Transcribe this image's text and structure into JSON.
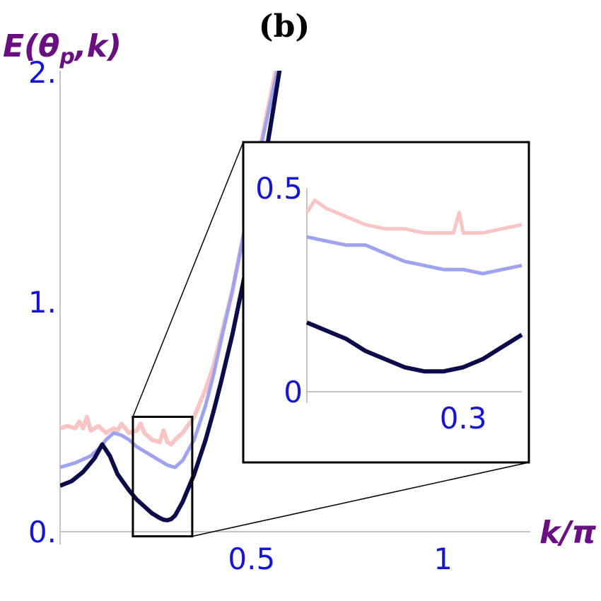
{
  "chart_data": [
    {
      "type": "line",
      "panel_label": "(b)",
      "ylabel": "E(θp,k)",
      "ylabel_parts": {
        "main": "E(",
        "theta": "θ",
        "sub": "p",
        "rest": ",k)"
      },
      "xlabel": "k/π",
      "xlim": [
        0,
        1.2
      ],
      "ylim": [
        0,
        2.0
      ],
      "x_ticks": [
        {
          "v": 0.5,
          "label": "0.5"
        },
        {
          "v": 1.0,
          "label": "1"
        }
      ],
      "y_ticks": [
        {
          "v": 0,
          "label": "0."
        },
        {
          "v": 1.0,
          "label": "1."
        },
        {
          "v": 2.0,
          "label": "2."
        }
      ],
      "series": [
        {
          "color": "#f8c4c4",
          "width": 6,
          "x": [
            0,
            0.02,
            0.04,
            0.05,
            0.06,
            0.07,
            0.08,
            0.1,
            0.12,
            0.14,
            0.15,
            0.16,
            0.18,
            0.2,
            0.21,
            0.22,
            0.24,
            0.26,
            0.27,
            0.28,
            0.29,
            0.3,
            0.32,
            0.35,
            0.38,
            0.4,
            0.42,
            0.45,
            0.48,
            0.5,
            0.52,
            0.54,
            0.56,
            0.58,
            0.6
          ],
          "y": [
            0.45,
            0.46,
            0.45,
            0.48,
            0.45,
            0.5,
            0.44,
            0.46,
            0.43,
            0.45,
            0.44,
            0.47,
            0.43,
            0.44,
            0.47,
            0.43,
            0.4,
            0.39,
            0.44,
            0.39,
            0.38,
            0.4,
            0.43,
            0.5,
            0.62,
            0.72,
            0.85,
            1.05,
            1.3,
            1.47,
            1.65,
            1.82,
            1.98,
            2.15,
            2.3
          ]
        },
        {
          "color": "#9fa2ee",
          "width": 5,
          "x": [
            0,
            0.04,
            0.08,
            0.1,
            0.12,
            0.14,
            0.16,
            0.18,
            0.2,
            0.22,
            0.24,
            0.26,
            0.28,
            0.3,
            0.32,
            0.35,
            0.38,
            0.4,
            0.42,
            0.45,
            0.48,
            0.5,
            0.53,
            0.56,
            0.58,
            0.6
          ],
          "y": [
            0.28,
            0.3,
            0.33,
            0.36,
            0.4,
            0.43,
            0.42,
            0.4,
            0.37,
            0.35,
            0.33,
            0.31,
            0.29,
            0.28,
            0.31,
            0.4,
            0.55,
            0.68,
            0.83,
            1.05,
            1.3,
            1.48,
            1.72,
            1.95,
            2.1,
            2.25
          ]
        },
        {
          "color": "#0b0b4a",
          "width": 6,
          "x": [
            0,
            0.03,
            0.06,
            0.09,
            0.11,
            0.13,
            0.15,
            0.18,
            0.2,
            0.22,
            0.24,
            0.26,
            0.27,
            0.28,
            0.29,
            0.3,
            0.32,
            0.35,
            0.38,
            0.4,
            0.42,
            0.45,
            0.48,
            0.5,
            0.52,
            0.55,
            0.58,
            0.6
          ],
          "y": [
            0.2,
            0.22,
            0.26,
            0.32,
            0.38,
            0.33,
            0.25,
            0.18,
            0.14,
            0.11,
            0.08,
            0.06,
            0.052,
            0.05,
            0.055,
            0.07,
            0.13,
            0.25,
            0.4,
            0.52,
            0.65,
            0.86,
            1.1,
            1.28,
            1.47,
            1.77,
            2.08,
            2.3
          ]
        }
      ]
    },
    {
      "type": "line",
      "role": "inset",
      "xlim": [
        0.22,
        0.33
      ],
      "ylim": [
        0,
        0.5
      ],
      "x_ticks": [
        {
          "v": 0.3,
          "label": "0.3"
        }
      ],
      "y_ticks": [
        {
          "v": 0,
          "label": "0"
        },
        {
          "v": 0.5,
          "label": "0.5"
        }
      ],
      "zoom_region": {
        "x": [
          0.19,
          0.345
        ],
        "y": [
          -0.02,
          0.5
        ]
      },
      "series": [
        {
          "color": "#f8c4c4",
          "width": 5,
          "x": [
            0.22,
            0.224,
            0.23,
            0.235,
            0.24,
            0.25,
            0.26,
            0.27,
            0.28,
            0.29,
            0.295,
            0.298,
            0.3,
            0.303,
            0.31,
            0.32,
            0.33
          ],
          "y": [
            0.44,
            0.47,
            0.45,
            0.44,
            0.43,
            0.41,
            0.4,
            0.4,
            0.39,
            0.39,
            0.39,
            0.44,
            0.39,
            0.39,
            0.39,
            0.4,
            0.41
          ]
        },
        {
          "color": "#9fa2ee",
          "width": 5,
          "x": [
            0.22,
            0.23,
            0.24,
            0.25,
            0.26,
            0.27,
            0.28,
            0.29,
            0.3,
            0.31,
            0.32,
            0.33
          ],
          "y": [
            0.38,
            0.37,
            0.36,
            0.36,
            0.34,
            0.32,
            0.31,
            0.3,
            0.3,
            0.29,
            0.3,
            0.31
          ]
        },
        {
          "color": "#0b0b4a",
          "width": 6,
          "x": [
            0.22,
            0.23,
            0.24,
            0.25,
            0.26,
            0.27,
            0.28,
            0.285,
            0.29,
            0.3,
            0.31,
            0.32,
            0.33
          ],
          "y": [
            0.17,
            0.15,
            0.13,
            0.1,
            0.08,
            0.06,
            0.05,
            0.05,
            0.05,
            0.06,
            0.08,
            0.11,
            0.14
          ]
        }
      ]
    }
  ]
}
